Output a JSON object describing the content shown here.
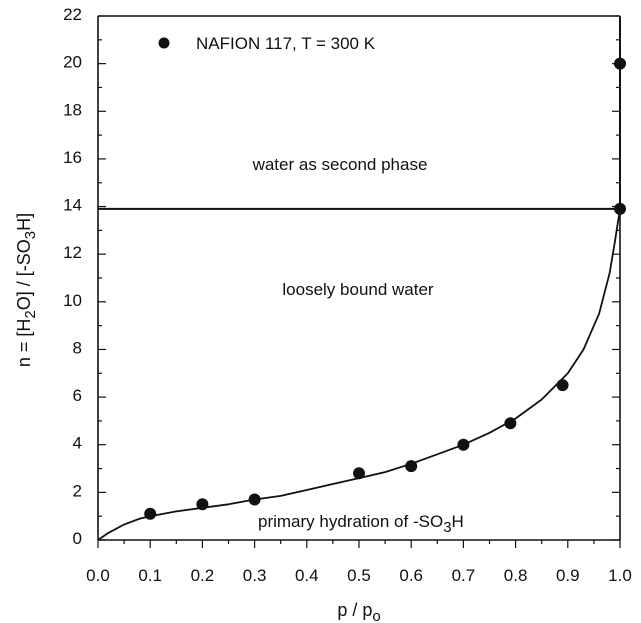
{
  "chart_data": {
    "type": "scatter",
    "title": "",
    "xlabel": {
      "main": "p / p",
      "sub": "o"
    },
    "ylabel": {
      "prefix": "n = [H",
      "sub1": "2",
      "middle": "O] / [-SO",
      "sub2": "3",
      "suffix": "H]"
    },
    "xlim": [
      0.0,
      1.0
    ],
    "ylim": [
      0,
      22
    ],
    "x_ticks": [
      "0.0",
      "0.1",
      "0.2",
      "0.3",
      "0.4",
      "0.5",
      "0.6",
      "0.7",
      "0.8",
      "0.9",
      "1.0"
    ],
    "y_ticks": [
      "0",
      "2",
      "4",
      "6",
      "8",
      "10",
      "12",
      "14",
      "16",
      "18",
      "20",
      "22"
    ],
    "grid": false,
    "legend": {
      "position": "top-left",
      "label": "NAFION 117, T = 300 K"
    },
    "series": [
      {
        "name": "NAFION 117, T = 300 K",
        "marker": "filled-circle",
        "points": [
          {
            "x": 0.1,
            "y": 1.1
          },
          {
            "x": 0.2,
            "y": 1.5
          },
          {
            "x": 0.3,
            "y": 1.7
          },
          {
            "x": 0.5,
            "y": 2.8
          },
          {
            "x": 0.6,
            "y": 3.1
          },
          {
            "x": 0.7,
            "y": 4.0
          },
          {
            "x": 0.79,
            "y": 4.9
          },
          {
            "x": 0.89,
            "y": 6.5
          },
          {
            "x": 1.0,
            "y": 13.9
          },
          {
            "x": 1.0,
            "y": 20.0
          }
        ]
      }
    ],
    "model_curve": [
      {
        "x": 0.0,
        "y": 0.0
      },
      {
        "x": 0.02,
        "y": 0.3
      },
      {
        "x": 0.05,
        "y": 0.65
      },
      {
        "x": 0.08,
        "y": 0.9
      },
      {
        "x": 0.1,
        "y": 1.0
      },
      {
        "x": 0.15,
        "y": 1.2
      },
      {
        "x": 0.2,
        "y": 1.35
      },
      {
        "x": 0.25,
        "y": 1.5
      },
      {
        "x": 0.3,
        "y": 1.7
      },
      {
        "x": 0.35,
        "y": 1.85
      },
      {
        "x": 0.4,
        "y": 2.1
      },
      {
        "x": 0.45,
        "y": 2.35
      },
      {
        "x": 0.5,
        "y": 2.6
      },
      {
        "x": 0.55,
        "y": 2.85
      },
      {
        "x": 0.6,
        "y": 3.2
      },
      {
        "x": 0.65,
        "y": 3.6
      },
      {
        "x": 0.7,
        "y": 4.0
      },
      {
        "x": 0.75,
        "y": 4.5
      },
      {
        "x": 0.8,
        "y": 5.1
      },
      {
        "x": 0.85,
        "y": 5.9
      },
      {
        "x": 0.9,
        "y": 7.0
      },
      {
        "x": 0.93,
        "y": 8.0
      },
      {
        "x": 0.96,
        "y": 9.5
      },
      {
        "x": 0.98,
        "y": 11.2
      },
      {
        "x": 0.99,
        "y": 12.5
      },
      {
        "x": 1.0,
        "y": 13.9
      }
    ],
    "phase_boundary_y": 13.9,
    "vertical_line_x": 1.0,
    "annotations": {
      "region_top": "water as second phase",
      "region_middle": "loosely bound water",
      "region_bottom": {
        "prefix": "primary hydration of -SO",
        "sub": "3",
        "suffix": "H"
      }
    },
    "colors": {
      "ink": "#111111",
      "background": "#ffffff"
    }
  }
}
